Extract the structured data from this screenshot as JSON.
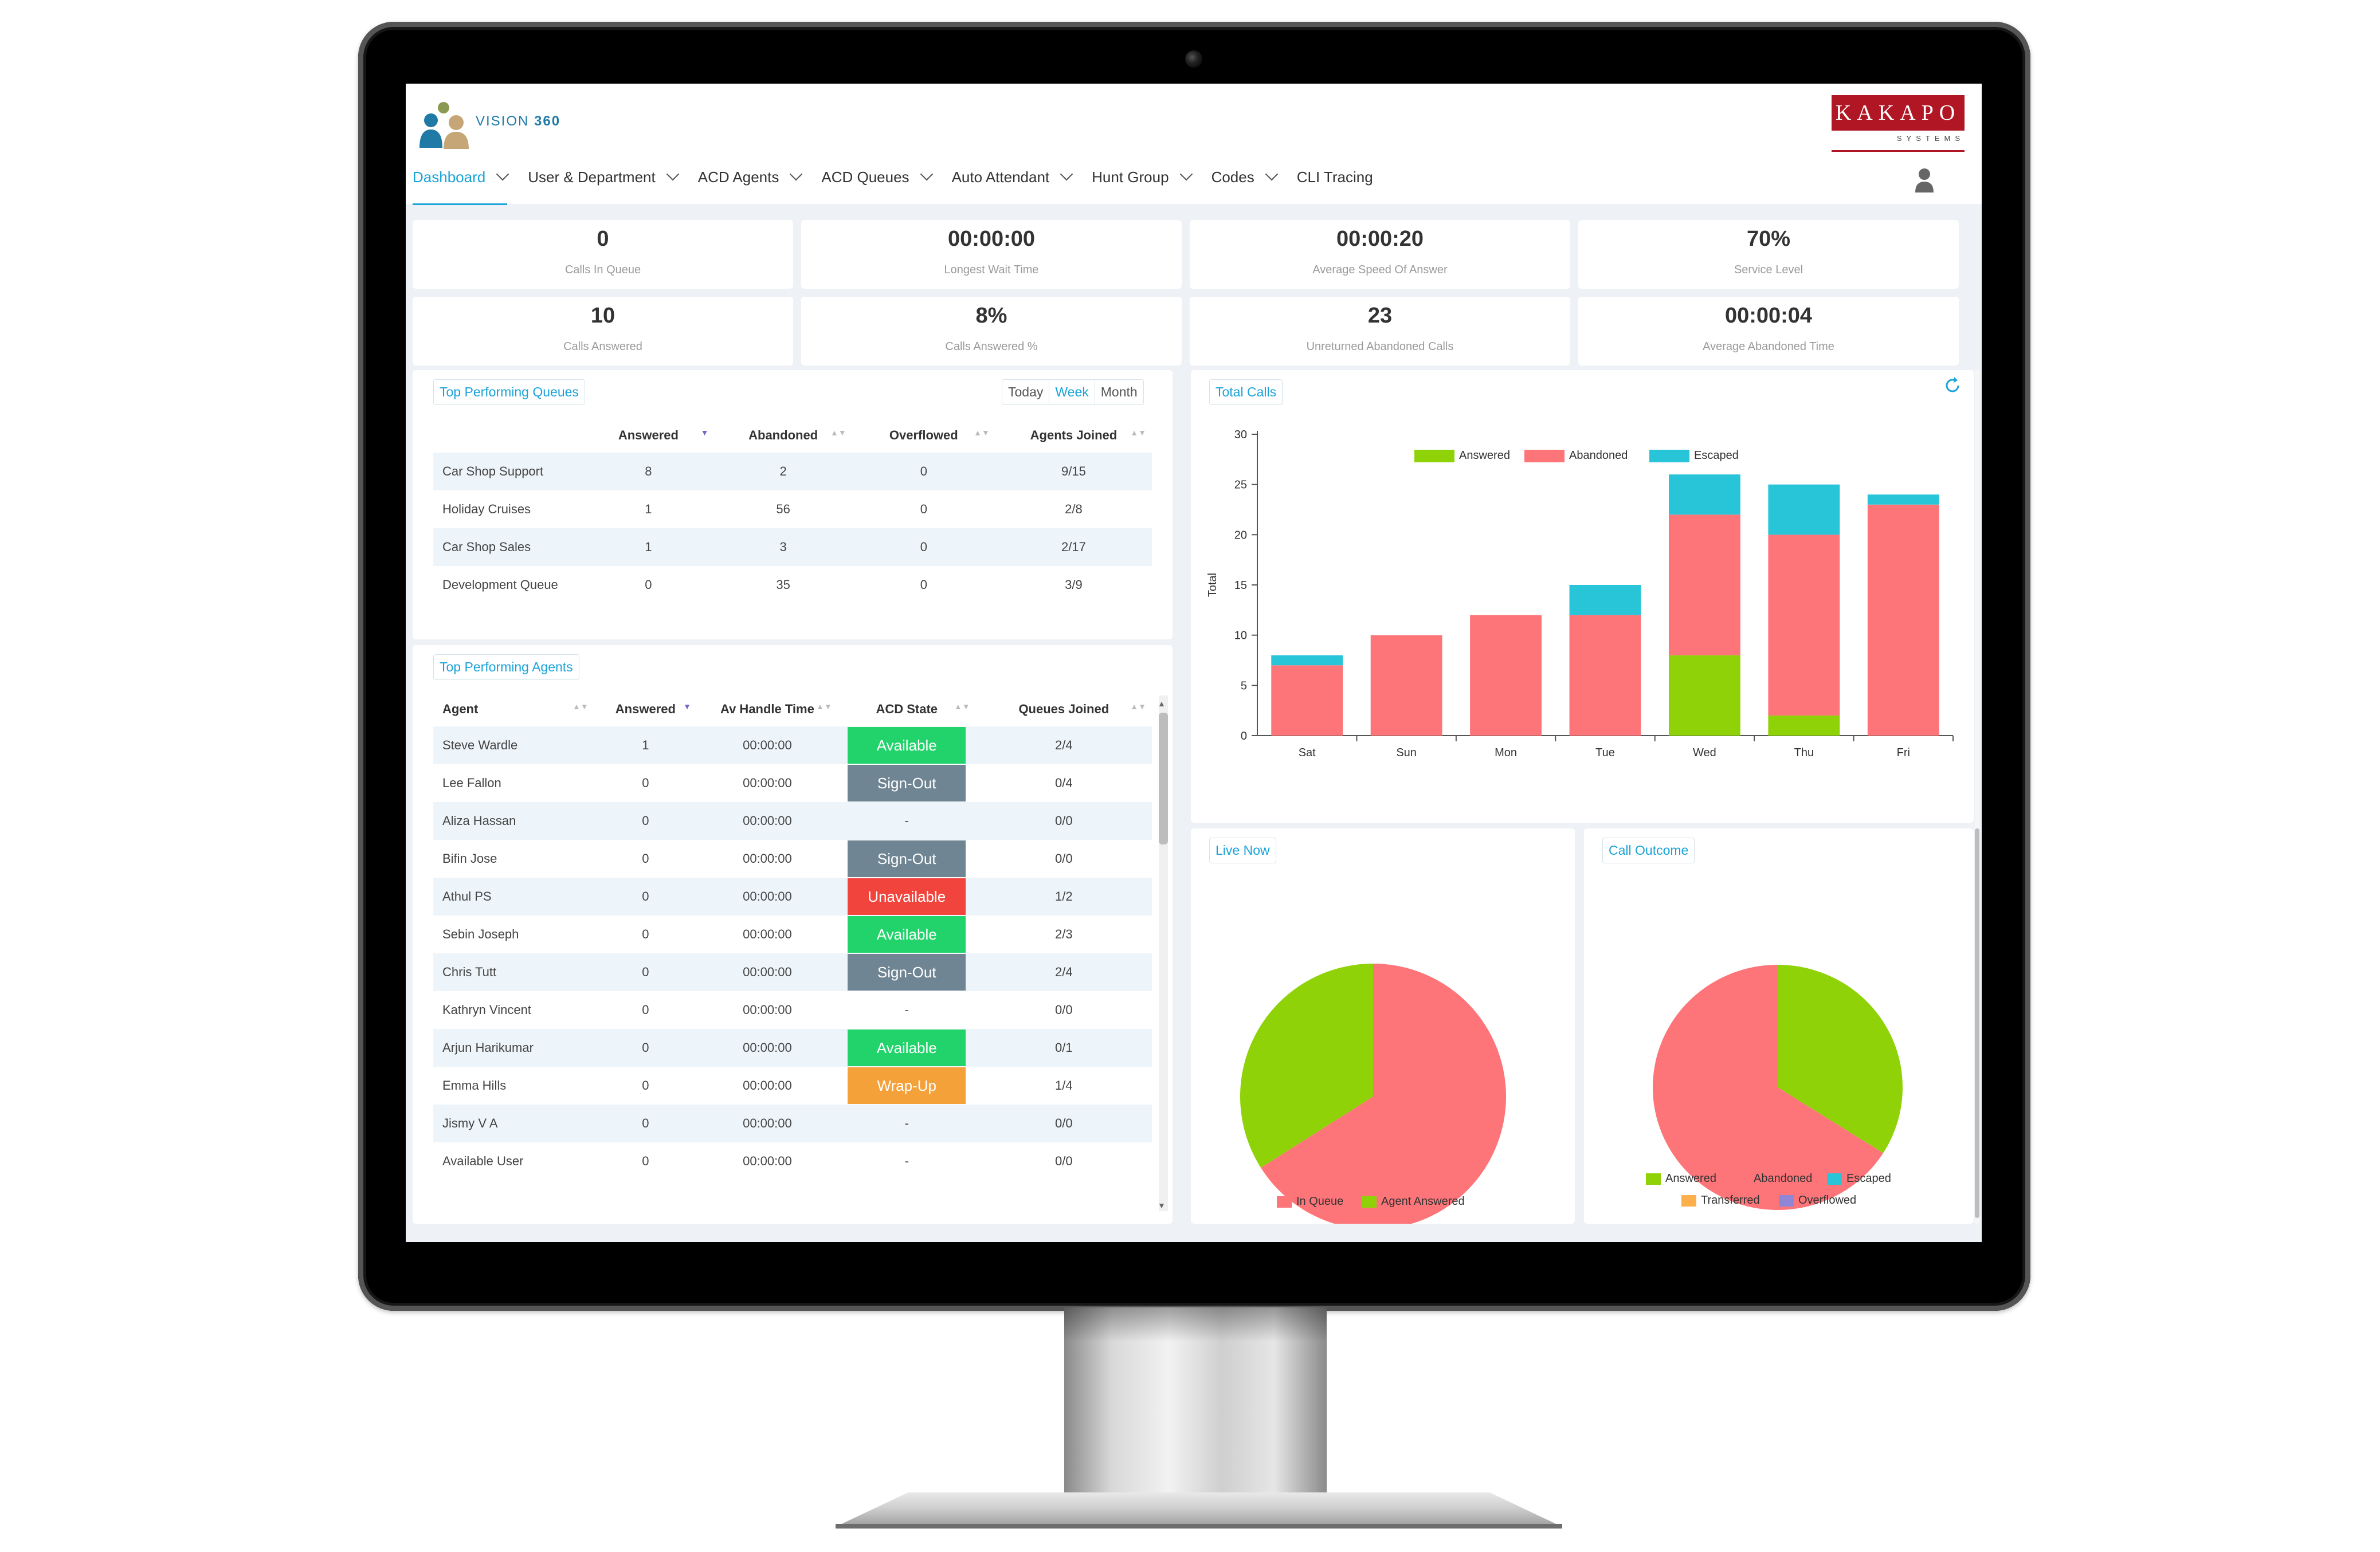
{
  "app": {
    "name": "VISION",
    "version": "360",
    "brand": "KAKAPO",
    "brand_sub": "SYSTEMS"
  },
  "nav": [
    {
      "label": "Dashboard",
      "active": true,
      "dropdown": true
    },
    {
      "label": "User & Department",
      "dropdown": true
    },
    {
      "label": "ACD Agents",
      "dropdown": true
    },
    {
      "label": "ACD Queues",
      "dropdown": true
    },
    {
      "label": "Auto Attendant",
      "dropdown": true
    },
    {
      "label": "Hunt Group",
      "dropdown": true
    },
    {
      "label": "Codes",
      "dropdown": true
    },
    {
      "label": "CLI Tracing",
      "dropdown": false
    }
  ],
  "kpis": [
    {
      "value": "0",
      "label": "Calls In Queue"
    },
    {
      "value": "00:00:00",
      "label": "Longest Wait Time"
    },
    {
      "value": "00:00:20",
      "label": "Average Speed Of Answer"
    },
    {
      "value": "70%",
      "label": "Service Level"
    },
    {
      "value": "10",
      "label": "Calls Answered"
    },
    {
      "value": "8%",
      "label": "Calls Answered %"
    },
    {
      "value": "23",
      "label": "Unreturned Abandoned Calls"
    },
    {
      "value": "00:00:04",
      "label": "Average Abandoned Time"
    }
  ],
  "queues": {
    "title": "Top Performing Queues",
    "ranges": [
      "Today",
      "Week",
      "Month"
    ],
    "active_range": "Week",
    "columns": [
      "Answered",
      "Abandoned",
      "Overflowed",
      "Agents Joined"
    ],
    "rows": [
      {
        "name": "Car Shop Support",
        "answered": "8",
        "abandoned": "2",
        "overflowed": "0",
        "agents": "9/15"
      },
      {
        "name": "Holiday Cruises",
        "answered": "1",
        "abandoned": "56",
        "overflowed": "0",
        "agents": "2/8"
      },
      {
        "name": "Car Shop Sales",
        "answered": "1",
        "abandoned": "3",
        "overflowed": "0",
        "agents": "2/17"
      },
      {
        "name": "Development Queue",
        "answered": "0",
        "abandoned": "35",
        "overflowed": "0",
        "agents": "3/9"
      }
    ]
  },
  "agents": {
    "title": "Top Performing Agents",
    "columns": [
      "Agent",
      "Answered",
      "Av Handle Time",
      "ACD State",
      "Queues Joined"
    ],
    "rows": [
      {
        "agent": "Steve Wardle",
        "answered": "1",
        "aht": "00:00:00",
        "state": "Available",
        "queues": "2/4"
      },
      {
        "agent": "Lee Fallon",
        "answered": "0",
        "aht": "00:00:00",
        "state": "Sign-Out",
        "queues": "0/4"
      },
      {
        "agent": "Aliza Hassan",
        "answered": "0",
        "aht": "00:00:00",
        "state": "-",
        "queues": "0/0"
      },
      {
        "agent": "Bifin Jose",
        "answered": "0",
        "aht": "00:00:00",
        "state": "Sign-Out",
        "queues": "0/0"
      },
      {
        "agent": "Athul PS",
        "answered": "0",
        "aht": "00:00:00",
        "state": "Unavailable",
        "queues": "1/2"
      },
      {
        "agent": "Sebin Joseph",
        "answered": "0",
        "aht": "00:00:00",
        "state": "Available",
        "queues": "2/3"
      },
      {
        "agent": "Chris Tutt",
        "answered": "0",
        "aht": "00:00:00",
        "state": "Sign-Out",
        "queues": "2/4"
      },
      {
        "agent": "Kathryn Vincent",
        "answered": "0",
        "aht": "00:00:00",
        "state": "-",
        "queues": "0/0"
      },
      {
        "agent": "Arjun Harikumar",
        "answered": "0",
        "aht": "00:00:00",
        "state": "Available",
        "queues": "0/1"
      },
      {
        "agent": "Emma Hills",
        "answered": "0",
        "aht": "00:00:00",
        "state": "Wrap-Up",
        "queues": "1/4"
      },
      {
        "agent": "Jismy V A",
        "answered": "0",
        "aht": "00:00:00",
        "state": "-",
        "queues": "0/0"
      },
      {
        "agent": "Available User",
        "answered": "0",
        "aht": "00:00:00",
        "state": "-",
        "queues": "0/0"
      }
    ]
  },
  "state_colors": {
    "Available": "#22d36b",
    "Sign-Out": "#6f8593",
    "Unavailable": "#f0443c",
    "Wrap-Up": "#f4a13a"
  },
  "colors": {
    "accent": "#1aa3d9",
    "answered": "#8ed207",
    "abandoned": "#fd7579",
    "escaped": "#28c4d8",
    "transferred": "#fbb04c",
    "overflowed": "#8f86d6"
  },
  "total_calls": {
    "title": "Total Calls"
  },
  "live_now": {
    "title": "Live Now"
  },
  "call_outcome": {
    "title": "Call Outcome"
  },
  "chart_data": [
    {
      "type": "bar",
      "stacked": true,
      "categories": [
        "Sat",
        "Sun",
        "Mon",
        "Tue",
        "Wed",
        "Thu",
        "Fri"
      ],
      "series": [
        {
          "name": "Answered",
          "color": "#8ed207",
          "values": [
            0,
            0,
            0,
            0,
            8,
            2,
            0
          ]
        },
        {
          "name": "Abandoned",
          "color": "#fd7579",
          "values": [
            7,
            10,
            12,
            12,
            14,
            18,
            23
          ]
        },
        {
          "name": "Escaped",
          "color": "#28c4d8",
          "values": [
            1,
            0,
            0,
            3,
            4,
            5,
            1
          ]
        }
      ],
      "ylabel": "Total",
      "ylim": [
        0,
        30
      ],
      "yticks": [
        0,
        5,
        10,
        15,
        20,
        25,
        30
      ],
      "legend": "top-center",
      "grid": false
    },
    {
      "type": "pie",
      "slices": [
        {
          "name": "In Queue",
          "value": 66,
          "color": "#fd7579"
        },
        {
          "name": "Agent Answered",
          "value": 34,
          "color": "#8ed207"
        }
      ],
      "legend": "bottom"
    },
    {
      "type": "pie",
      "slices": [
        {
          "name": "Answered",
          "value": 34,
          "color": "#8ed207"
        },
        {
          "name": "Abandoned",
          "value": 66,
          "color": "#fd7579"
        },
        {
          "name": "Escaped",
          "value": 0,
          "color": "#28c4d8"
        },
        {
          "name": "Transferred",
          "value": 0,
          "color": "#fbb04c"
        },
        {
          "name": "Overflowed",
          "value": 0,
          "color": "#8f86d6"
        }
      ],
      "legend": "bottom"
    }
  ]
}
